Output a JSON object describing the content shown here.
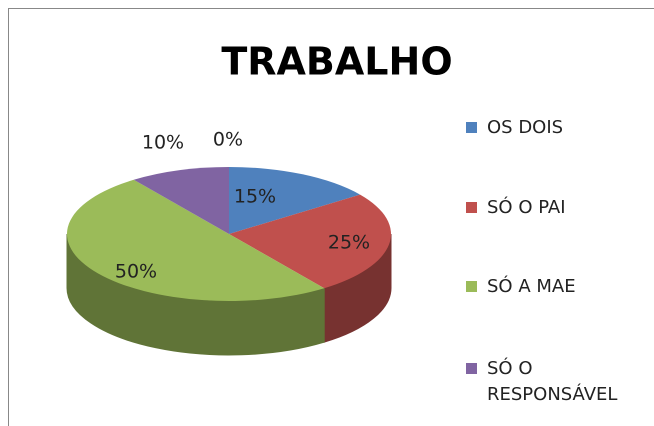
{
  "chart_data": {
    "type": "pie3d",
    "title": "TRABALHO",
    "categories": [
      "OS DOIS",
      "SÓ O PAI",
      "SÓ A MAE",
      "SÓ O RESPONSÁVEL",
      null
    ],
    "values": [
      15,
      25,
      50,
      10,
      0
    ],
    "value_labels": [
      "15%",
      "25%",
      "50%",
      "10%",
      "0%"
    ],
    "colors": [
      "#4f81bd",
      "#c0504d",
      "#9bbb59",
      "#8064a2",
      "#f79646"
    ],
    "legend": "right"
  }
}
